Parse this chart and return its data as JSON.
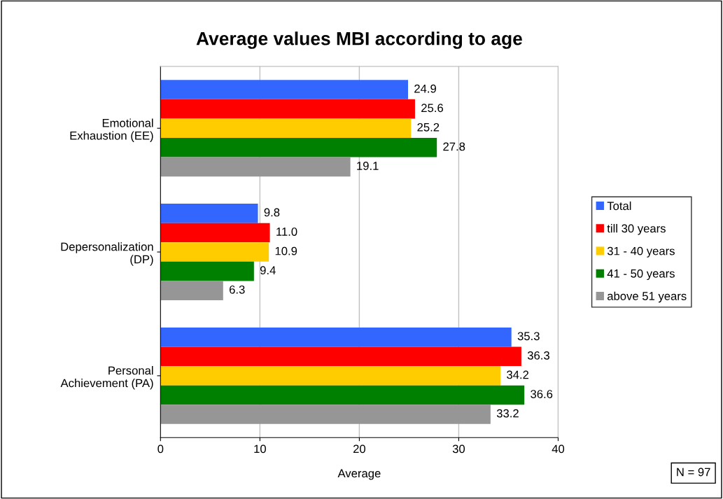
{
  "chart_data": {
    "type": "bar",
    "orientation": "horizontal",
    "title": "Average values MBI according to age",
    "xlabel": "Average",
    "categories": [
      "Emotional\nExhaustion (EE)",
      "Depersonalization\n(DP)",
      "Personal\nAchievement (PA)"
    ],
    "series": [
      {
        "name": "Total",
        "color": "#3366ff",
        "values": [
          24.9,
          9.8,
          35.3
        ],
        "value_labels": [
          "24.9",
          "9.8",
          "35.3"
        ]
      },
      {
        "name": "till 30 years",
        "color": "#ff0000",
        "values": [
          25.6,
          11.0,
          36.3
        ],
        "value_labels": [
          "25.6",
          "11.0",
          "36.3"
        ]
      },
      {
        "name": "31 - 40 years",
        "color": "#ffcc00",
        "values": [
          25.2,
          10.9,
          34.2
        ],
        "value_labels": [
          "25.2",
          "10.9",
          "34.2"
        ]
      },
      {
        "name": "41 - 50 years",
        "color": "#008000",
        "values": [
          27.8,
          9.4,
          36.6
        ],
        "value_labels": [
          "27.8",
          "9.4",
          "36.6"
        ]
      },
      {
        "name": "above 51 years",
        "color": "#969696",
        "values": [
          19.1,
          6.3,
          33.2
        ],
        "value_labels": [
          "19.1",
          "6.3",
          "33.2"
        ]
      }
    ],
    "xlim": [
      0,
      40
    ],
    "xticks": [
      0,
      10,
      20,
      30,
      40
    ],
    "grid": "x",
    "legend": "right",
    "annotations": [
      "N = 97"
    ]
  }
}
